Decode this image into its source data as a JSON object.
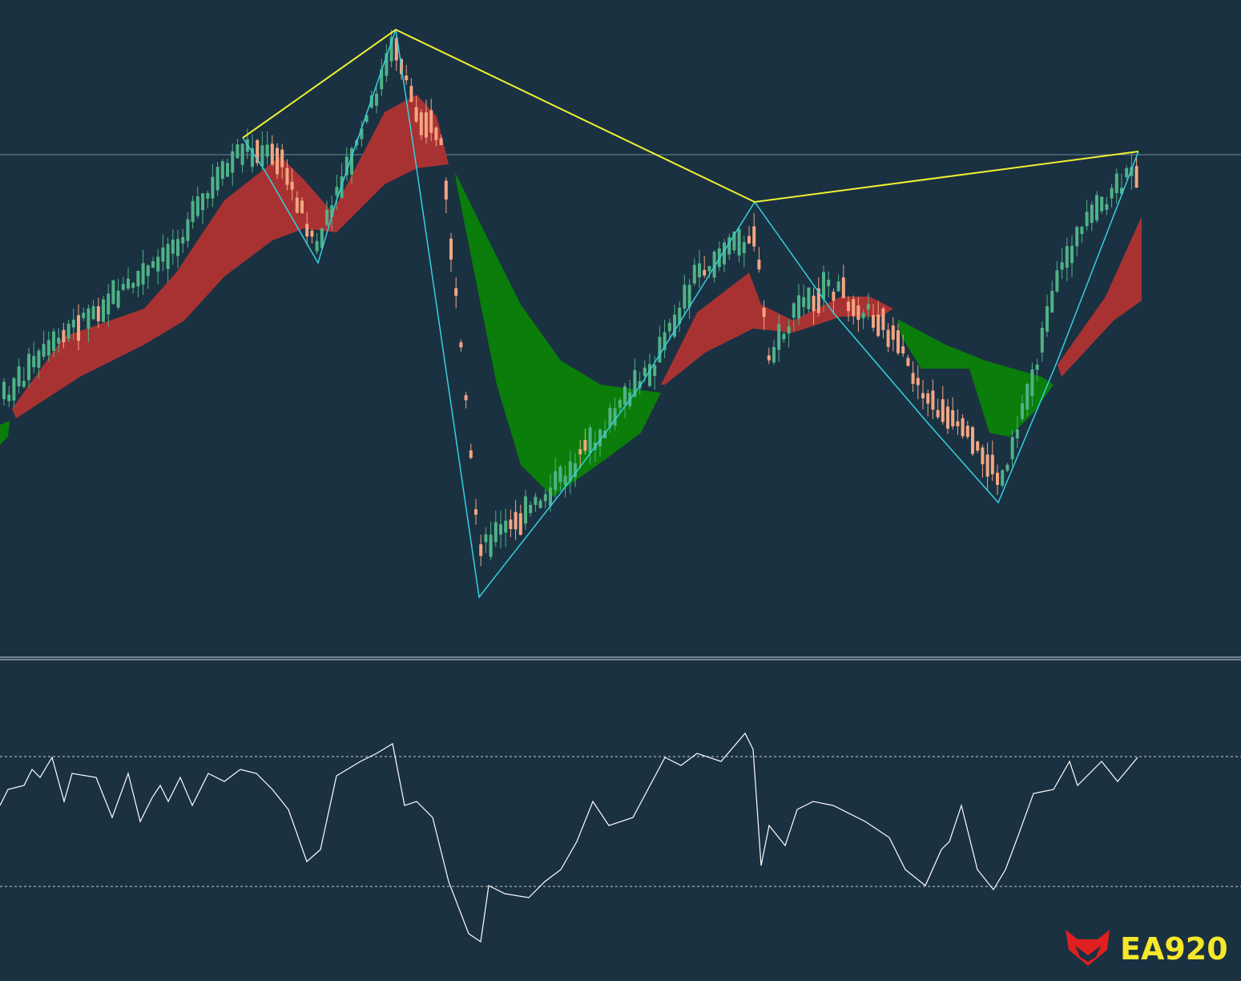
{
  "logo": {
    "text": "EA920"
  }
}
